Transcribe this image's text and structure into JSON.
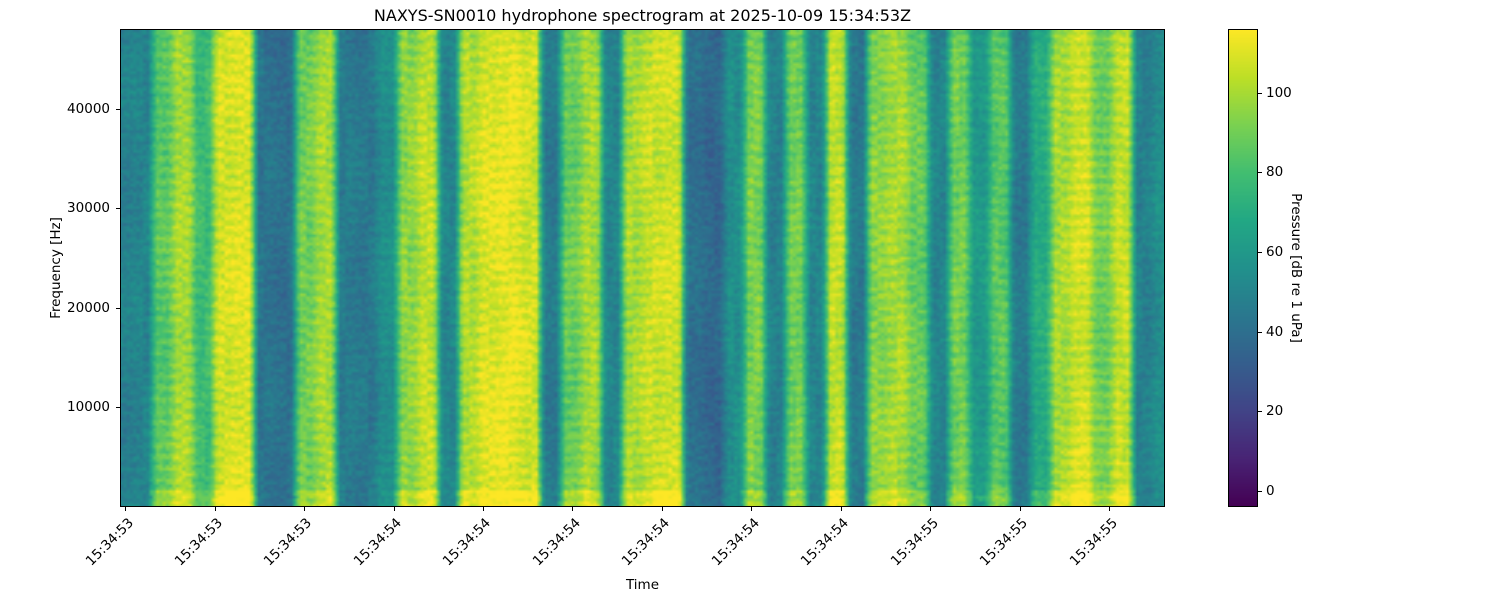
{
  "chart_data": {
    "type": "heatmap",
    "title": "NAXYS-SN0010 hydrophone spectrogram at 2025-10-09 15:34:53Z",
    "xlabel": "Time",
    "ylabel": "Frequency [Hz]",
    "x_ticklabels": [
      "15:34:53",
      "15:34:53",
      "15:34:53",
      "15:34:54",
      "15:34:54",
      "15:34:54",
      "15:34:54",
      "15:34:54",
      "15:34:54",
      "15:34:55",
      "15:34:55",
      "15:34:55"
    ],
    "y_ticks": [
      10000,
      20000,
      30000,
      40000
    ],
    "ylim": [
      0,
      48000
    ],
    "time_start": "15:34:53",
    "time_end": "15:34:55",
    "grid": false,
    "colormap": "viridis",
    "colorbar": {
      "label": "Pressure [dB re 1 uPa]",
      "ticks": [
        0,
        20,
        40,
        60,
        80,
        100
      ],
      "vmin": -4,
      "vmax": 116
    },
    "columns_db": [
      48,
      50,
      85,
      100,
      78,
      108,
      110,
      42,
      40,
      90,
      100,
      46,
      44,
      55,
      95,
      105,
      50,
      102,
      110,
      112,
      108,
      45,
      88,
      100,
      50,
      100,
      106,
      108,
      40,
      36,
      55,
      92,
      48,
      90,
      50,
      105,
      45,
      95,
      100,
      88,
      50,
      90,
      60,
      85,
      45,
      70,
      100,
      108,
      90,
      105,
      48,
      55
    ],
    "noise_db": 5,
    "seed": 7
  }
}
